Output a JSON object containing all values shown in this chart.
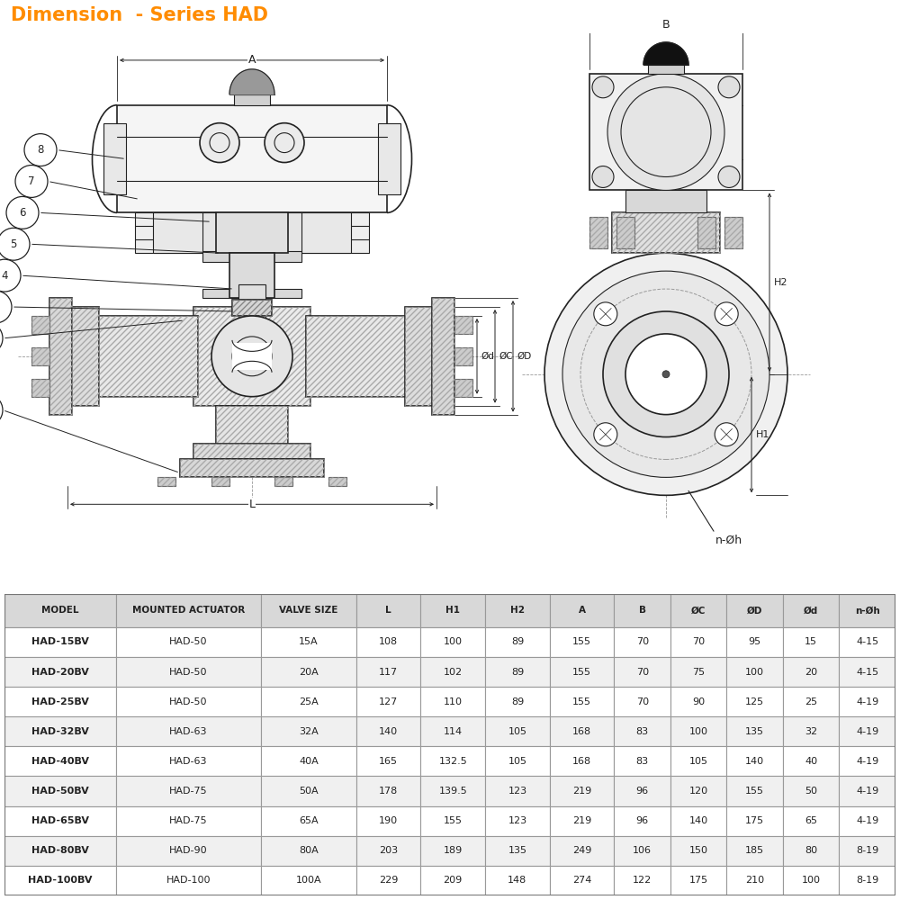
{
  "title": "Dimension  - Series HAD",
  "title_color": "#FF8C00",
  "title_bg_color": "#FDDCB8",
  "bg_color": "#FFFFFF",
  "table_headers": [
    "MODEL",
    "MOUNTED ACTUATOR",
    "VALVE SIZE",
    "L",
    "H1",
    "H2",
    "A",
    "B",
    "ØC",
    "ØD",
    "Ød",
    "n-Øh"
  ],
  "table_data": [
    [
      "HAD-15BV",
      "HAD-50",
      "15A",
      "108",
      "100",
      "89",
      "155",
      "70",
      "70",
      "95",
      "15",
      "4-15"
    ],
    [
      "HAD-20BV",
      "HAD-50",
      "20A",
      "117",
      "102",
      "89",
      "155",
      "70",
      "75",
      "100",
      "20",
      "4-15"
    ],
    [
      "HAD-25BV",
      "HAD-50",
      "25A",
      "127",
      "110",
      "89",
      "155",
      "70",
      "90",
      "125",
      "25",
      "4-19"
    ],
    [
      "HAD-32BV",
      "HAD-63",
      "32A",
      "140",
      "114",
      "105",
      "168",
      "83",
      "100",
      "135",
      "32",
      "4-19"
    ],
    [
      "HAD-40BV",
      "HAD-63",
      "40A",
      "165",
      "132.5",
      "105",
      "168",
      "83",
      "105",
      "140",
      "40",
      "4-19"
    ],
    [
      "HAD-50BV",
      "HAD-75",
      "50A",
      "178",
      "139.5",
      "123",
      "219",
      "96",
      "120",
      "155",
      "50",
      "4-19"
    ],
    [
      "HAD-65BV",
      "HAD-75",
      "65A",
      "190",
      "155",
      "123",
      "219",
      "96",
      "140",
      "175",
      "65",
      "4-19"
    ],
    [
      "HAD-80BV",
      "HAD-90",
      "80A",
      "203",
      "189",
      "135",
      "249",
      "106",
      "150",
      "185",
      "80",
      "8-19"
    ],
    [
      "HAD-100BV",
      "HAD-100",
      "100A",
      "229",
      "209",
      "148",
      "274",
      "122",
      "175",
      "210",
      "100",
      "8-19"
    ]
  ],
  "table_header_bg": "#D8D8D8",
  "table_row_bg1": "#FFFFFF",
  "table_row_bg2": "#F0F0F0",
  "table_line_color": "#999999",
  "drawing_line_color": "#222222",
  "col_widths": [
    1.35,
    1.75,
    1.15,
    0.78,
    0.78,
    0.78,
    0.78,
    0.68,
    0.68,
    0.68,
    0.68,
    0.68
  ]
}
